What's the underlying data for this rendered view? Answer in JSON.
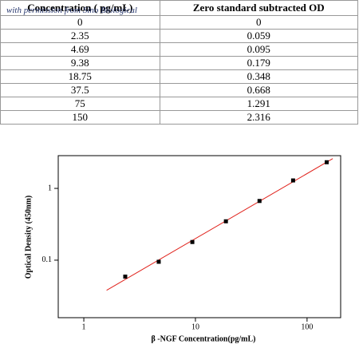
{
  "table": {
    "header": [
      "Concentration ( pg/mL)",
      "Zero standard subtracted OD"
    ],
    "rows": [
      [
        0,
        0
      ],
      [
        2.35,
        0.059
      ],
      [
        4.69,
        0.095
      ],
      [
        9.38,
        0.179
      ],
      [
        18.75,
        0.348
      ],
      [
        37.5,
        0.668
      ],
      [
        75,
        1.291
      ],
      [
        150,
        2.316
      ]
    ]
  },
  "watermark": "with permission from Sino Biological",
  "chart_data": {
    "type": "scatter",
    "x_label": "β -NGF  Concentration(pg/mL)",
    "y_label": "Optical Density (450nm)",
    "x": [
      2.35,
      4.69,
      9.38,
      18.75,
      37.5,
      75,
      150
    ],
    "series": [
      {
        "color": "#000000",
        "values": [
          0.059,
          0.095,
          0.179,
          0.348,
          0.668,
          1.291,
          2.316
        ]
      }
    ],
    "fit": {
      "color": "#e0201a",
      "x": [
        1.6,
        170
      ],
      "values": [
        0.038,
        2.6
      ]
    },
    "xscale": "log",
    "yscale": "log",
    "xlim": [
      0.59,
      200
    ],
    "ylim": [
      0.0158,
      2.86
    ],
    "xticks": [
      1,
      10,
      100
    ],
    "yticks": [
      0.1,
      1
    ]
  }
}
